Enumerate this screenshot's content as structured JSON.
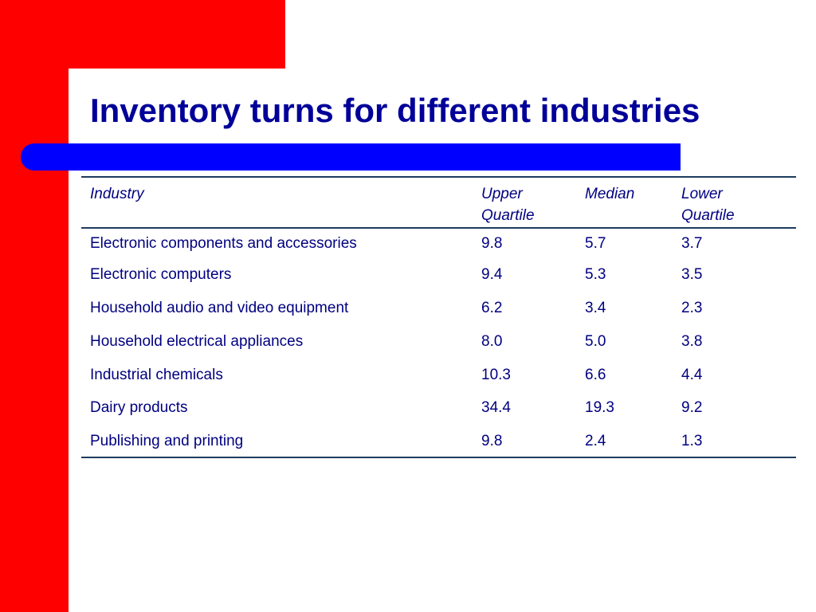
{
  "title": "Inventory turns for different industries",
  "colors": {
    "accent_red": "#ff0000",
    "accent_blue": "#0000ff",
    "title_color": "#000099",
    "text_color": "#000080"
  },
  "table": {
    "headers": {
      "industry": "Industry",
      "upper": "Upper\nQuartile",
      "median": "Median",
      "lower": "Lower\nQuartile"
    },
    "rows": [
      {
        "industry": "Electronic components and accessories",
        "upper": "9.8",
        "median": "5.7",
        "lower": "3.7"
      },
      {
        "industry": "Electronic computers",
        "upper": "9.4",
        "median": "5.3",
        "lower": "3.5"
      },
      {
        "industry": "Household audio and video equipment",
        "upper": "6.2",
        "median": "3.4",
        "lower": "2.3"
      },
      {
        "industry": "Household electrical appliances",
        "upper": "8.0",
        "median": "5.0",
        "lower": "3.8"
      },
      {
        "industry": "Industrial chemicals",
        "upper": "10.3",
        "median": "6.6",
        "lower": "4.4"
      },
      {
        "industry": "Dairy products",
        "upper": "34.4",
        "median": "19.3",
        "lower": "9.2"
      },
      {
        "industry": "Publishing and printing",
        "upper": "9.8",
        "median": "2.4",
        "lower": "1.3"
      }
    ]
  }
}
